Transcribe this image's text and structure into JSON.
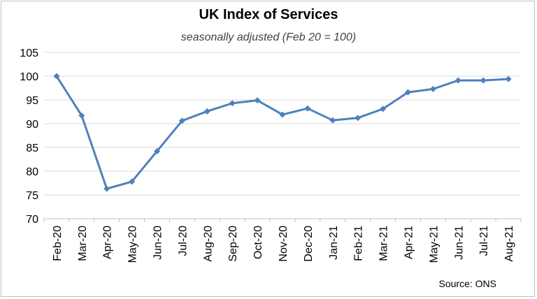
{
  "chart_data": {
    "type": "line",
    "title": "UK Index of Services",
    "subtitle": "seasonally adjusted (Feb 20 = 100)",
    "categories": [
      "Feb-20",
      "Mar-20",
      "Apr-20",
      "May-20",
      "Jun-20",
      "Jul-20",
      "Aug-20",
      "Sep-20",
      "Oct-20",
      "Nov-20",
      "Dec-20",
      "Jan-21",
      "Feb-21",
      "Mar-21",
      "Apr-21",
      "May-21",
      "Jun-21",
      "Jul-21",
      "Aug-21"
    ],
    "series": [
      {
        "values": [
          100,
          91.7,
          76.3,
          77.8,
          84.2,
          90.6,
          92.6,
          94.3,
          94.9,
          91.9,
          93.2,
          90.7,
          91.2,
          93.1,
          96.6,
          97.3,
          99.1,
          99.1,
          99.4
        ],
        "color": "#4f81bd"
      }
    ],
    "ylim": [
      70,
      105
    ],
    "yticks": [
      70,
      75,
      80,
      85,
      90,
      95,
      100,
      105
    ],
    "grid": true,
    "xlabel": "",
    "ylabel": "",
    "source": "Source: ONS"
  }
}
